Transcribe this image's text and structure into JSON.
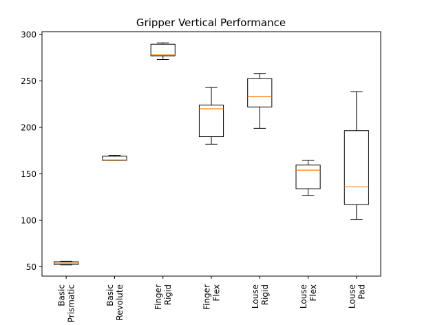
{
  "chart_data": {
    "type": "boxplot",
    "title": "Gripper Vertical Performance",
    "xlabel": "",
    "ylabel": "",
    "ylim": [
      40,
      303
    ],
    "yticks": [
      50,
      100,
      150,
      200,
      250,
      300
    ],
    "grid": false,
    "legend": "none",
    "colors": {
      "box": "#000000",
      "median": "#ff7f0e"
    },
    "categories": [
      {
        "lines": [
          "Basic",
          "Prismatic"
        ],
        "whisker_low": 52,
        "q1": 52.5,
        "median": 54,
        "q3": 55.5,
        "whisker_high": 56
      },
      {
        "lines": [
          "Basic",
          "Revolute"
        ],
        "whisker_low": 164.5,
        "q1": 164.5,
        "median": 165,
        "q3": 169,
        "whisker_high": 170
      },
      {
        "lines": [
          "Finger",
          "Rigid"
        ],
        "whisker_low": 273,
        "q1": 277,
        "median": 278,
        "q3": 289.5,
        "whisker_high": 291
      },
      {
        "lines": [
          "Finger",
          "Flex"
        ],
        "whisker_low": 182,
        "q1": 190,
        "median": 220,
        "q3": 224,
        "whisker_high": 243
      },
      {
        "lines": [
          "Louse",
          "Rigid"
        ],
        "whisker_low": 199,
        "q1": 222,
        "median": 233,
        "q3": 252.5,
        "whisker_high": 258
      },
      {
        "lines": [
          "Louse",
          "Flex"
        ],
        "whisker_low": 127,
        "q1": 134,
        "median": 154,
        "q3": 159.5,
        "whisker_high": 164.5
      },
      {
        "lines": [
          "Louse",
          "Pad"
        ],
        "whisker_low": 101,
        "q1": 117,
        "median": 136,
        "q3": 196.5,
        "whisker_high": 238.5
      }
    ]
  }
}
